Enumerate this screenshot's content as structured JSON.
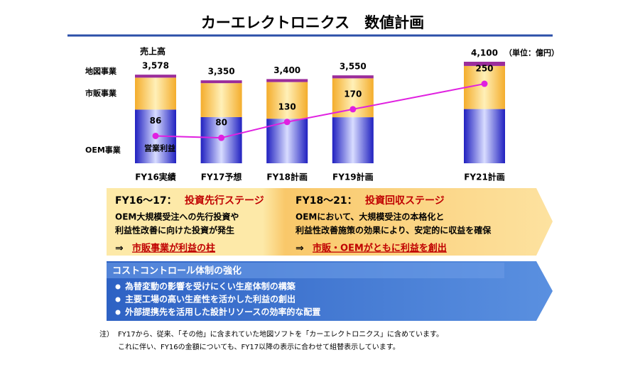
{
  "title": "カーエレクトロニクス　数値計画",
  "chart_data": {
    "type": "bar",
    "stacked": true,
    "categories": [
      "FY16実績",
      "FY17予想",
      "FY18計画",
      "FY19計画",
      "FY21計画"
    ],
    "series": [
      {
        "name": "OEM事業",
        "color": "#2a2ad0",
        "values": [
          2168,
          1865,
          1800,
          1860,
          2190
        ]
      },
      {
        "name": "市販事業",
        "color": "#f6b93e",
        "values": [
          1290,
          1370,
          1480,
          1570,
          1740
        ]
      },
      {
        "name": "地図事業",
        "color": "#9b2d9b",
        "values": [
          120,
          115,
          120,
          120,
          170
        ]
      },
      {
        "name": "営業利益",
        "type": "line",
        "axis": "y2",
        "color": "#e020e0",
        "values": [
          86,
          80,
          130,
          170,
          250
        ]
      }
    ],
    "totals": {
      "name": "売上高",
      "values": [
        3578,
        3350,
        3400,
        3550,
        4100
      ],
      "value_labels": [
        "3,578",
        "3,350",
        "3,400",
        "3,550",
        "4,100"
      ]
    },
    "unit_note": "（単位：億円）",
    "ylim": [
      0,
      4300
    ],
    "y2lim": [
      0,
      335
    ]
  },
  "panels": {
    "invest": {
      "heading": "FY16～17：",
      "stage": "投資先行ステージ",
      "lines": [
        "OEM大規模受注への先行投資や",
        "利益性改善に向けた投資が発生"
      ],
      "arrow": "⇒",
      "result": "市販事業が利益の柱"
    },
    "recovery": {
      "heading": "FY18～21：",
      "stage": "投資回収ステージ",
      "lines": [
        "OEMにおいて、大規模受注の本格化と",
        "利益性改善施策の効果により、安定的に収益を確保"
      ],
      "arrow": "⇒",
      "result": "市販・OEMがともに利益を創出"
    },
    "cost": {
      "heading": "コストコントロール体制の強化",
      "bullets": [
        "為替変動の影響を受けにくい生産体制の構築",
        "主要工場の高い生産性を活かした利益の創出",
        "外部提携先を活用した設計リソースの効率的な配置"
      ]
    }
  },
  "notes": {
    "label": "注）",
    "lines": [
      "FY17から、従来、「その他」に含まれていた地図ソフトを「カーエレクトロニクス」に含めています。",
      "これに伴い、FY16の金額についても、FY17以降の表示に合わせて組替表示しています。"
    ]
  }
}
